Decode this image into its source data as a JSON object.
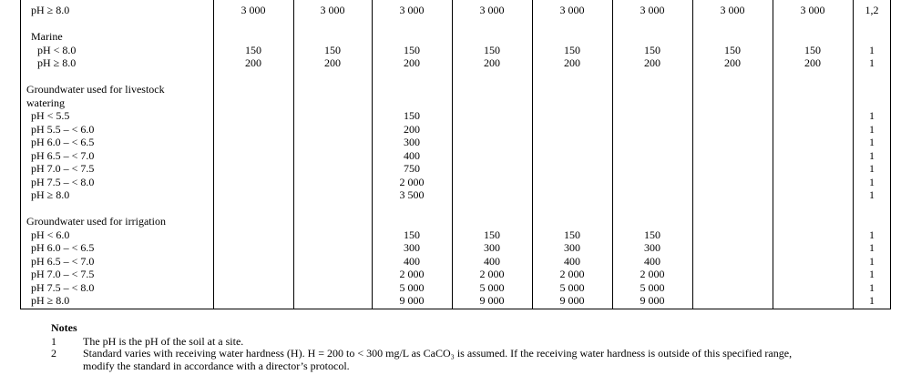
{
  "columns": 10,
  "rows": [
    {
      "label": "pH ≥ 8.0",
      "indent": 1,
      "values": [
        "3 000",
        "3 000",
        "3 000",
        "3 000",
        "3 000",
        "3 000",
        "3 000",
        "3 000"
      ],
      "note": "1,2"
    },
    {
      "label": "",
      "indent": 0,
      "values": [],
      "note": ""
    },
    {
      "label": "Marine",
      "indent": 1,
      "values": [],
      "note": ""
    },
    {
      "label": "pH < 8.0",
      "indent": 2,
      "values": [
        "150",
        "150",
        "150",
        "150",
        "150",
        "150",
        "150",
        "150"
      ],
      "note": "1"
    },
    {
      "label": "pH ≥ 8.0",
      "indent": 2,
      "values": [
        "200",
        "200",
        "200",
        "200",
        "200",
        "200",
        "200",
        "200"
      ],
      "note": "1"
    },
    {
      "label": "",
      "indent": 0,
      "values": [],
      "note": ""
    },
    {
      "label": "Groundwater used for livestock",
      "indent": 0,
      "values": [],
      "note": ""
    },
    {
      "label": "watering",
      "indent": 0,
      "values": [],
      "note": ""
    },
    {
      "label": "pH < 5.5",
      "indent": 1,
      "values": [
        "",
        "",
        "150",
        "",
        "",
        "",
        "",
        ""
      ],
      "note": "1"
    },
    {
      "label": "pH 5.5 – < 6.0",
      "indent": 1,
      "values": [
        "",
        "",
        "200",
        "",
        "",
        "",
        "",
        ""
      ],
      "note": "1"
    },
    {
      "label": "pH 6.0 – < 6.5",
      "indent": 1,
      "values": [
        "",
        "",
        "300",
        "",
        "",
        "",
        "",
        ""
      ],
      "note": "1"
    },
    {
      "label": "pH 6.5 – < 7.0",
      "indent": 1,
      "values": [
        "",
        "",
        "400",
        "",
        "",
        "",
        "",
        ""
      ],
      "note": "1"
    },
    {
      "label": "pH 7.0 – < 7.5",
      "indent": 1,
      "values": [
        "",
        "",
        "750",
        "",
        "",
        "",
        "",
        ""
      ],
      "note": "1"
    },
    {
      "label": "pH 7.5 – < 8.0",
      "indent": 1,
      "values": [
        "",
        "",
        "2 000",
        "",
        "",
        "",
        "",
        ""
      ],
      "note": "1"
    },
    {
      "label": "pH ≥ 8.0",
      "indent": 1,
      "values": [
        "",
        "",
        "3 500",
        "",
        "",
        "",
        "",
        ""
      ],
      "note": "1"
    },
    {
      "label": "",
      "indent": 0,
      "values": [],
      "note": ""
    },
    {
      "label": "Groundwater used for irrigation",
      "indent": 0,
      "values": [],
      "note": ""
    },
    {
      "label": "pH < 6.0",
      "indent": 1,
      "values": [
        "",
        "",
        "150",
        "150",
        "150",
        "150",
        "",
        ""
      ],
      "note": "1"
    },
    {
      "label": "pH 6.0 – < 6.5",
      "indent": 1,
      "values": [
        "",
        "",
        "300",
        "300",
        "300",
        "300",
        "",
        ""
      ],
      "note": "1"
    },
    {
      "label": "pH 6.5 – < 7.0",
      "indent": 1,
      "values": [
        "",
        "",
        "400",
        "400",
        "400",
        "400",
        "",
        ""
      ],
      "note": "1"
    },
    {
      "label": "pH 7.0 – < 7.5",
      "indent": 1,
      "values": [
        "",
        "",
        "2 000",
        "2 000",
        "2 000",
        "2 000",
        "",
        ""
      ],
      "note": "1"
    },
    {
      "label": "pH 7.5 – < 8.0",
      "indent": 1,
      "values": [
        "",
        "",
        "5 000",
        "5 000",
        "5 000",
        "5 000",
        "",
        ""
      ],
      "note": "1"
    },
    {
      "label": "pH ≥ 8.0",
      "indent": 1,
      "values": [
        "",
        "",
        "9 000",
        "9 000",
        "9 000",
        "9 000",
        "",
        ""
      ],
      "note": "1"
    }
  ],
  "notes": {
    "title": "Notes",
    "items": [
      {
        "num": "1",
        "text": "The pH is the pH of the soil at a site."
      },
      {
        "num": "2",
        "text": "Standard varies with receiving water hardness (H). H = 200 to < 300 mg/L as CaCO₃ is assumed.  If the receiving water hardness is outside of this specified range, modify the standard in accordance with a director’s protocol."
      }
    ]
  }
}
